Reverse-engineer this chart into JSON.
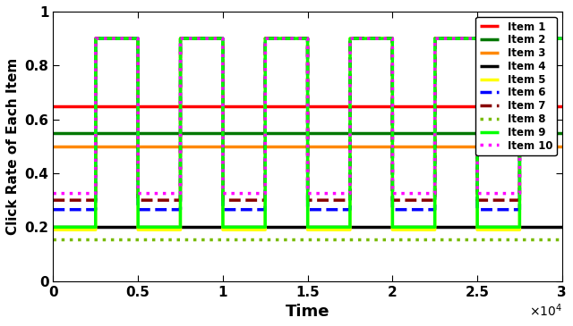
{
  "xlabel": "Time",
  "ylabel": "Click Rate of Each Item",
  "xlim": [
    0,
    30000
  ],
  "ylim": [
    0,
    1
  ],
  "xticks": [
    0,
    5000,
    10000,
    15000,
    20000,
    25000,
    30000
  ],
  "xtick_labels": [
    "0",
    "0.5",
    "1",
    "1.5",
    "2",
    "2.5",
    "3"
  ],
  "items": [
    {
      "name": "Item 1",
      "color": "#ff0000",
      "linestyle": "-",
      "linewidth": 2.5,
      "type": "constant",
      "value": 0.65
    },
    {
      "name": "Item 2",
      "color": "#007700",
      "linestyle": "-",
      "linewidth": 2.5,
      "type": "constant",
      "value": 0.55
    },
    {
      "name": "Item 3",
      "color": "#ff8800",
      "linestyle": "-",
      "linewidth": 2.5,
      "type": "constant",
      "value": 0.5
    },
    {
      "name": "Item 4",
      "color": "#000000",
      "linestyle": "-",
      "linewidth": 2.5,
      "type": "constant",
      "value": 0.2
    },
    {
      "name": "Item 5",
      "color": "#ffff00",
      "linestyle": "-",
      "linewidth": 2.5,
      "type": "switching",
      "low": 0.19,
      "high": 0.9,
      "high_intervals": [
        [
          2500,
          5000
        ],
        [
          7500,
          10000
        ],
        [
          12500,
          15000
        ],
        [
          17500,
          20000
        ],
        [
          22500,
          25000
        ],
        [
          27500,
          30000
        ]
      ]
    },
    {
      "name": "Item 6",
      "color": "#0000ff",
      "linestyle": "--",
      "linewidth": 2.5,
      "type": "switching",
      "low": 0.265,
      "high": 0.9,
      "high_intervals": [
        [
          2500,
          5000
        ],
        [
          7500,
          10000
        ],
        [
          12500,
          15000
        ],
        [
          17500,
          20000
        ],
        [
          22500,
          25000
        ],
        [
          27500,
          30000
        ]
      ]
    },
    {
      "name": "Item 7",
      "color": "#880000",
      "linestyle": "--",
      "linewidth": 2.5,
      "type": "switching",
      "low": 0.3,
      "high": 0.9,
      "high_intervals": [
        [
          2500,
          5000
        ],
        [
          7500,
          10000
        ],
        [
          12500,
          15000
        ],
        [
          17500,
          20000
        ],
        [
          22500,
          25000
        ],
        [
          27500,
          30000
        ]
      ]
    },
    {
      "name": "Item 8",
      "color": "#77bb00",
      "linestyle": ":",
      "linewidth": 2.5,
      "type": "constant",
      "value": 0.155
    },
    {
      "name": "Item 9",
      "color": "#00ff00",
      "linestyle": "-",
      "linewidth": 2.5,
      "type": "switching",
      "low": 0.2,
      "high": 0.9,
      "high_intervals": [
        [
          2500,
          5000
        ],
        [
          7500,
          10000
        ],
        [
          12500,
          15000
        ],
        [
          17500,
          20000
        ],
        [
          22500,
          25000
        ],
        [
          27500,
          30000
        ]
      ]
    },
    {
      "name": "Item 10",
      "color": "#ff00ff",
      "linestyle": ":",
      "linewidth": 2.5,
      "type": "switching",
      "low": 0.325,
      "high": 0.9,
      "high_intervals": [
        [
          2500,
          5000
        ],
        [
          7500,
          10000
        ],
        [
          12500,
          15000
        ],
        [
          17500,
          20000
        ],
        [
          22500,
          25000
        ],
        [
          27500,
          30000
        ]
      ]
    }
  ],
  "figsize": [
    6.4,
    3.65
  ],
  "dpi": 100
}
